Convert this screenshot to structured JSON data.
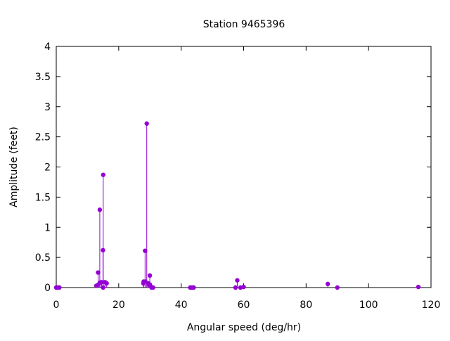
{
  "chart_data": {
    "type": "scatter",
    "style": "impulses-with-points",
    "title": "Station 9465396",
    "xlabel": "Angular speed (deg/hr)",
    "ylabel": "Amplitude (feet)",
    "xlim": [
      0,
      120
    ],
    "ylim": [
      0,
      4
    ],
    "xticks": [
      0,
      20,
      40,
      60,
      80,
      100,
      120
    ],
    "yticks": [
      0,
      0.5,
      1,
      1.5,
      2,
      2.5,
      3,
      3.5,
      4
    ],
    "ytick_labels": [
      "0",
      "0.5",
      "1",
      "1.5",
      "2",
      "2.5",
      "3",
      "3.5",
      "4"
    ],
    "grid": false,
    "legend": "none",
    "color": "#9400d3",
    "points": [
      {
        "x": 0.0,
        "y": 0.0
      },
      {
        "x": 0.04,
        "y": 0.0
      },
      {
        "x": 0.08,
        "y": 0.0
      },
      {
        "x": 0.5,
        "y": 0.0
      },
      {
        "x": 1.0,
        "y": 0.0
      },
      {
        "x": 12.85,
        "y": 0.03
      },
      {
        "x": 13.4,
        "y": 0.25
      },
      {
        "x": 13.47,
        "y": 0.05
      },
      {
        "x": 13.94,
        "y": 1.29
      },
      {
        "x": 14.0,
        "y": 0.08
      },
      {
        "x": 14.5,
        "y": 0.09
      },
      {
        "x": 14.96,
        "y": 0.62
      },
      {
        "x": 15.0,
        "y": 0.0
      },
      {
        "x": 15.04,
        "y": 1.87
      },
      {
        "x": 15.59,
        "y": 0.09
      },
      {
        "x": 16.14,
        "y": 0.07
      },
      {
        "x": 27.9,
        "y": 0.07
      },
      {
        "x": 28.0,
        "y": 0.1
      },
      {
        "x": 28.44,
        "y": 0.61
      },
      {
        "x": 28.51,
        "y": 0.1
      },
      {
        "x": 28.98,
        "y": 2.72
      },
      {
        "x": 29.46,
        "y": 0.07
      },
      {
        "x": 29.53,
        "y": 0.05
      },
      {
        "x": 29.96,
        "y": 0.2
      },
      {
        "x": 30.0,
        "y": 0.05
      },
      {
        "x": 30.08,
        "y": 0.03
      },
      {
        "x": 30.5,
        "y": 0.0
      },
      {
        "x": 31.0,
        "y": 0.0
      },
      {
        "x": 42.9,
        "y": 0.0
      },
      {
        "x": 43.5,
        "y": 0.0
      },
      {
        "x": 44.0,
        "y": 0.0
      },
      {
        "x": 57.4,
        "y": 0.0
      },
      {
        "x": 57.97,
        "y": 0.12
      },
      {
        "x": 58.98,
        "y": 0.0
      },
      {
        "x": 60.0,
        "y": 0.01
      },
      {
        "x": 86.95,
        "y": 0.06
      },
      {
        "x": 90.0,
        "y": 0.0
      },
      {
        "x": 115.94,
        "y": 0.01
      }
    ]
  }
}
